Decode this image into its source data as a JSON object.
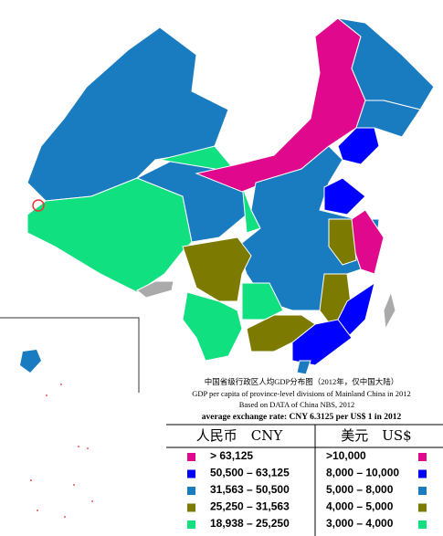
{
  "map": {
    "title": "中国省级行政区人均GDP分布图（2012年，仅中国大陆）",
    "subtitle": "GDP per capita of province-level divisions of Mainland China in 2012",
    "source": "Based on DATA of China NBS, 2012",
    "note": "average  exchange rate: CNY 6.3125 per US$ 1 in 2012",
    "legend": {
      "header_cny": "人民币　CNY",
      "header_usd": "美元　US$",
      "rows": [
        {
          "color": "#e0088c",
          "cny": ">  63,125",
          "usd": ">10,000"
        },
        {
          "color": "#0000ff",
          "cny": "50,500  –  63,125",
          "usd": "8,000 – 10,000"
        },
        {
          "color": "#1a7cc0",
          "cny": "31,563  –  50,500",
          "usd": "5,000 – 8,000"
        },
        {
          "color": "#7d7a00",
          "cny": "25,250  –  31,563",
          "usd": "4,000 – 5,000"
        },
        {
          "color": "#10e080",
          "cny": "18,938  –  25,250",
          "usd": "3,000 – 4,000"
        }
      ]
    }
  }
}
